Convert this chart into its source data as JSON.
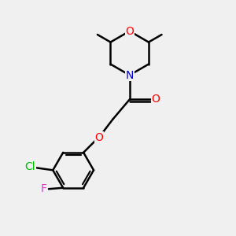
{
  "bg_color": "#f0f0f0",
  "atom_colors": {
    "O": "#ff0000",
    "N": "#0000cc",
    "Cl": "#00bb00",
    "F": "#cc44cc",
    "C": "#000000"
  },
  "bond_color": "#000000",
  "bond_width": 1.8,
  "font_size_atom": 10
}
